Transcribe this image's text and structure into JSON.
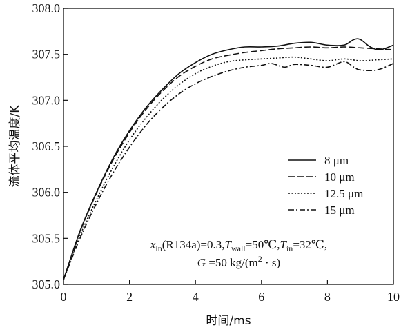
{
  "chart_data": {
    "type": "line",
    "xlabel": "时间/ms",
    "ylabel": "流体平均温度/K",
    "xlim": [
      0,
      10
    ],
    "ylim": [
      305.0,
      308.0
    ],
    "x_ticks": [
      "0",
      "2",
      "4",
      "6",
      "8",
      "10"
    ],
    "y_ticks": [
      "305.0",
      "305.5",
      "306.0",
      "306.5",
      "307.0",
      "307.5",
      "308.0"
    ],
    "grid": false,
    "legend_position": "right",
    "series": [
      {
        "name": "8 μm",
        "dash": "solid",
        "x": [
          0,
          0.5,
          1,
          1.5,
          2,
          2.5,
          3,
          3.5,
          4,
          4.5,
          5,
          5.5,
          6,
          6.5,
          7,
          7.5,
          8,
          8.5,
          8.8,
          9,
          9.3,
          9.6,
          10
        ],
        "y": [
          305.05,
          305.58,
          306.0,
          306.37,
          306.67,
          306.92,
          307.12,
          307.29,
          307.41,
          307.5,
          307.55,
          307.58,
          307.58,
          307.59,
          307.62,
          307.63,
          307.6,
          307.6,
          307.66,
          307.66,
          307.58,
          307.55,
          307.6
        ]
      },
      {
        "name": "10 μm",
        "dash": "dashed",
        "x": [
          0,
          0.5,
          1,
          1.5,
          2,
          2.5,
          3,
          3.5,
          4,
          4.5,
          5,
          5.5,
          6,
          6.5,
          7,
          7.5,
          8,
          8.5,
          9,
          9.5,
          10
        ],
        "y": [
          305.05,
          305.57,
          305.99,
          306.35,
          306.65,
          306.9,
          307.1,
          307.26,
          307.37,
          307.45,
          307.49,
          307.52,
          307.54,
          307.56,
          307.57,
          307.58,
          307.57,
          307.58,
          307.57,
          307.56,
          307.55
        ]
      },
      {
        "name": "12.5 μm",
        "dash": "dotted",
        "x": [
          0,
          0.5,
          1,
          1.5,
          2,
          2.5,
          3,
          3.5,
          4,
          4.5,
          5,
          5.5,
          6,
          6.5,
          7,
          7.5,
          8,
          8.5,
          9,
          9.5,
          10
        ],
        "y": [
          305.05,
          305.53,
          305.92,
          306.27,
          306.57,
          306.81,
          307.01,
          307.17,
          307.29,
          307.37,
          307.42,
          307.44,
          307.45,
          307.46,
          307.47,
          307.45,
          307.43,
          307.45,
          307.43,
          307.44,
          307.45
        ]
      },
      {
        "name": "15 μm",
        "dash": "dashdot",
        "x": [
          0,
          0.5,
          1,
          1.5,
          2,
          2.5,
          3,
          3.5,
          4,
          4.5,
          5,
          5.5,
          6,
          6.3,
          6.7,
          7,
          7.5,
          8,
          8.5,
          8.8,
          9,
          9.5,
          10
        ],
        "y": [
          305.05,
          305.5,
          305.88,
          306.21,
          306.49,
          306.73,
          306.92,
          307.07,
          307.18,
          307.26,
          307.32,
          307.36,
          307.38,
          307.4,
          307.36,
          307.39,
          307.38,
          307.36,
          307.42,
          307.36,
          307.33,
          307.33,
          307.4
        ]
      }
    ]
  },
  "annotation": {
    "x_sym": "x",
    "x_sub": "in",
    "x_rest": "(R134a)=0.3,",
    "t_sym": "T",
    "t_wall_sub": "wall",
    "t_wall_rest": "=50℃,",
    "t_in_sub": "in",
    "t_in_rest": "=32℃,",
    "g_sym": "G",
    "g_rest_a": " =50 kg/(m",
    "g_sup": "2",
    "g_rest_b": " · s)"
  }
}
